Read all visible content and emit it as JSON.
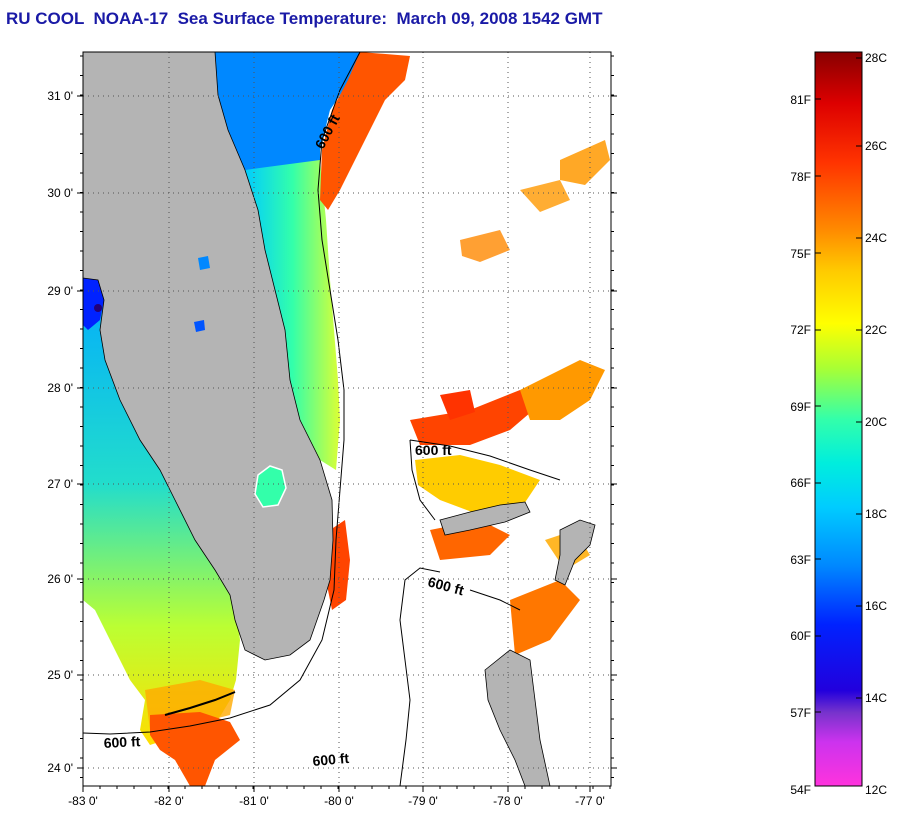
{
  "title": "RU COOL  NOAA-17  Sea Surface Temperature:  March 09, 2008 1542 GMT",
  "map": {
    "lon_labels": [
      "-83 0'",
      "-82 0'",
      "-81 0'",
      "-80 0'",
      "-79 0'",
      "-78 0'",
      "-77 0'"
    ],
    "lat_labels": [
      "31 0'",
      "30 0'",
      "29 0'",
      "28 0'",
      "27 0'",
      "26 0'",
      "25 0'",
      "24 0'"
    ],
    "lon_range": [
      -83,
      -76.7
    ],
    "lat_range": [
      23.8,
      31.4
    ],
    "contour_labels": [
      "600 ft",
      "600 ft",
      "600 ft",
      "600 ft",
      "600 ft"
    ],
    "land_color": "#b4b4b4",
    "no_data_color": "#ffffff"
  },
  "colorbar": {
    "celsius_labels": [
      "28C",
      "26C",
      "24C",
      "22C",
      "20C",
      "18C",
      "16C",
      "14C",
      "12C"
    ],
    "fahrenheit_labels": [
      "81F",
      "78F",
      "75F",
      "72F",
      "69F",
      "66F",
      "63F",
      "60F",
      "57F",
      "54F"
    ],
    "range_c": [
      12,
      28
    ],
    "gradient": [
      "#ff33dd",
      "#9933ff",
      "#2200dd",
      "#0033ff",
      "#0099ff",
      "#00ddff",
      "#33ffaa",
      "#aaff33",
      "#ffff00",
      "#ffaa00",
      "#ff5500",
      "#ee1100",
      "#880000"
    ]
  }
}
